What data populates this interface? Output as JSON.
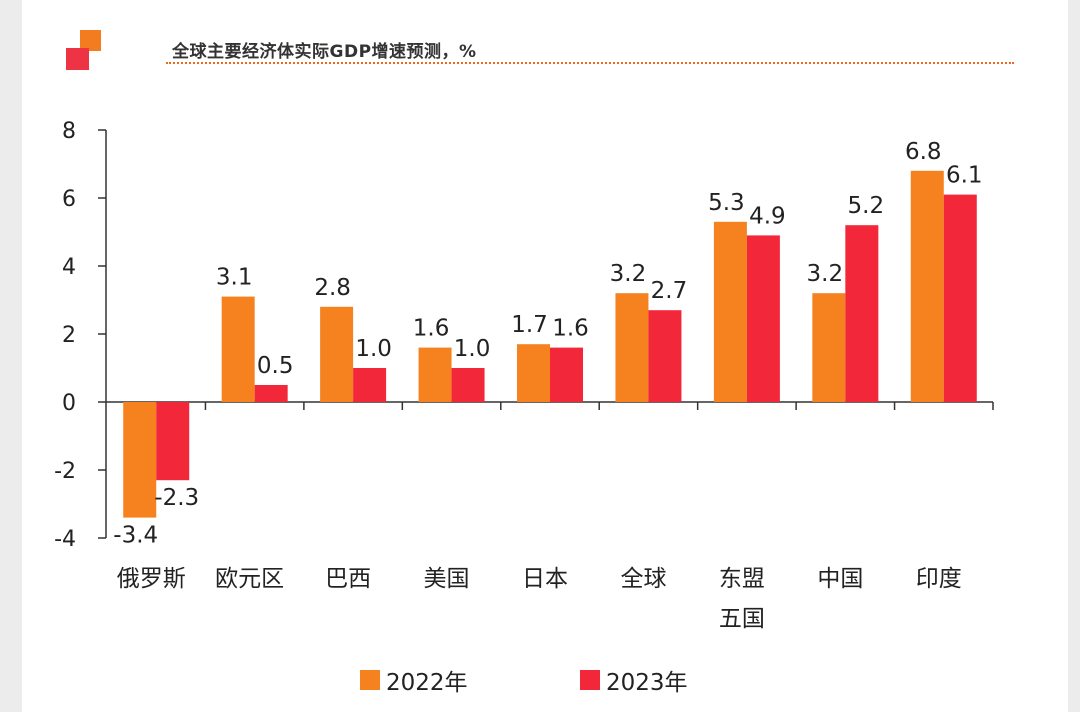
{
  "colors": {
    "accent": "#f47c20",
    "accent_dark": "#ee3344",
    "series_2022": "#f5821f",
    "series_2023": "#f2283a",
    "axis": "#333333",
    "text": "#222222"
  },
  "icons": {
    "logo": "two-square-logo-icon"
  },
  "chart_data": {
    "type": "bar",
    "title": "全球主要经济体实际GDP增速预测，%",
    "xlabel": "",
    "ylabel": "",
    "ylim": [
      -4,
      8
    ],
    "yticks": [
      8,
      6,
      4,
      2,
      0,
      -2,
      -4
    ],
    "ytick_labels": [
      "8",
      "6",
      "4",
      "2",
      "0",
      "-2",
      "-4"
    ],
    "grid": false,
    "legend_position": "bottom-center",
    "categories": [
      "俄罗斯",
      "欧元区",
      "巴西",
      "美国",
      "日本",
      "全球",
      "东盟五国",
      "中国",
      "印度"
    ],
    "category_lines": [
      [
        "俄罗斯"
      ],
      [
        "欧元区"
      ],
      [
        "巴西"
      ],
      [
        "美国"
      ],
      [
        "日本"
      ],
      [
        "全球"
      ],
      [
        "东盟",
        "五国"
      ],
      [
        "中国"
      ],
      [
        "印度"
      ]
    ],
    "series": [
      {
        "name": "2022年",
        "values": [
          -3.4,
          3.1,
          2.8,
          1.6,
          1.7,
          3.2,
          5.3,
          3.2,
          6.8
        ],
        "labels": [
          "-3.4",
          "3.1",
          "2.8",
          "1.6",
          "1.7",
          "3.2",
          "5.3",
          "3.2",
          "6.8"
        ]
      },
      {
        "name": "2023年",
        "values": [
          -2.3,
          0.5,
          1.0,
          1.0,
          1.6,
          2.7,
          4.9,
          5.2,
          6.1
        ],
        "labels": [
          "-2.3",
          "0.5",
          "1.0",
          "1.0",
          "1.6",
          "2.7",
          "4.9",
          "5.2",
          "6.1"
        ]
      }
    ]
  }
}
